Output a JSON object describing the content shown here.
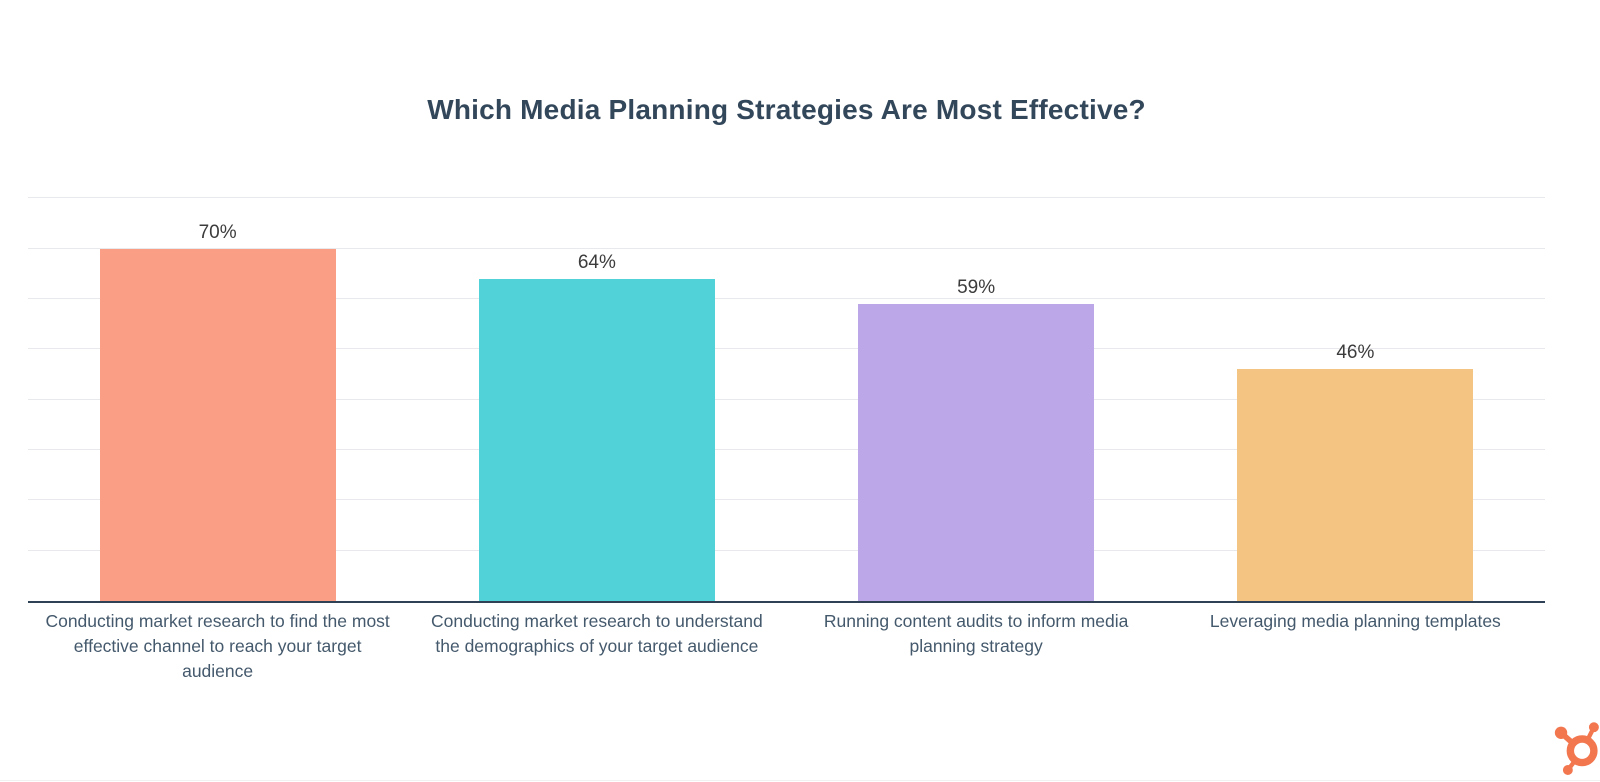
{
  "chart_data": {
    "type": "bar",
    "title": "Which Media Planning Strategies Are Most Effective?",
    "categories": [
      "Conducting market research to find the most effective channel to reach your target audience",
      "Conducting market research to understand the demographics of your target audience",
      "Running content audits to inform media planning strategy",
      "Leveraging media planning templates"
    ],
    "category_lines": [
      [
        "Conducting market research to find the most",
        "effective channel to reach your target",
        "audience"
      ],
      [
        "Conducting market research to understand",
        "the demographics of your target audience"
      ],
      [
        "Running content audits to inform media",
        "planning strategy"
      ],
      [
        "Leveraging media planning templates"
      ]
    ],
    "values": [
      70,
      64,
      59,
      46
    ],
    "value_labels": [
      "70%",
      "64%",
      "59%",
      "46%"
    ],
    "bar_colors": [
      "#FA9F85",
      "#50D2D8",
      "#BCA8E9",
      "#F4C483"
    ],
    "xlabel": "",
    "ylabel": "",
    "ylim": [
      0,
      86
    ],
    "gridlines": {
      "interval": 10,
      "max": 80,
      "on": true
    },
    "legend_position": "none"
  },
  "style": {
    "title_color": "#33475B",
    "axis_line_color": "#2F4154",
    "gridline_color": "#E7E9EC",
    "category_label_color": "#44596C",
    "value_label_color": "#3C3C3C",
    "background_color": "#FFFFFF"
  },
  "branding": {
    "logo_icon": "hubspot-sprocket-icon",
    "logo_color": "#F2764E"
  }
}
